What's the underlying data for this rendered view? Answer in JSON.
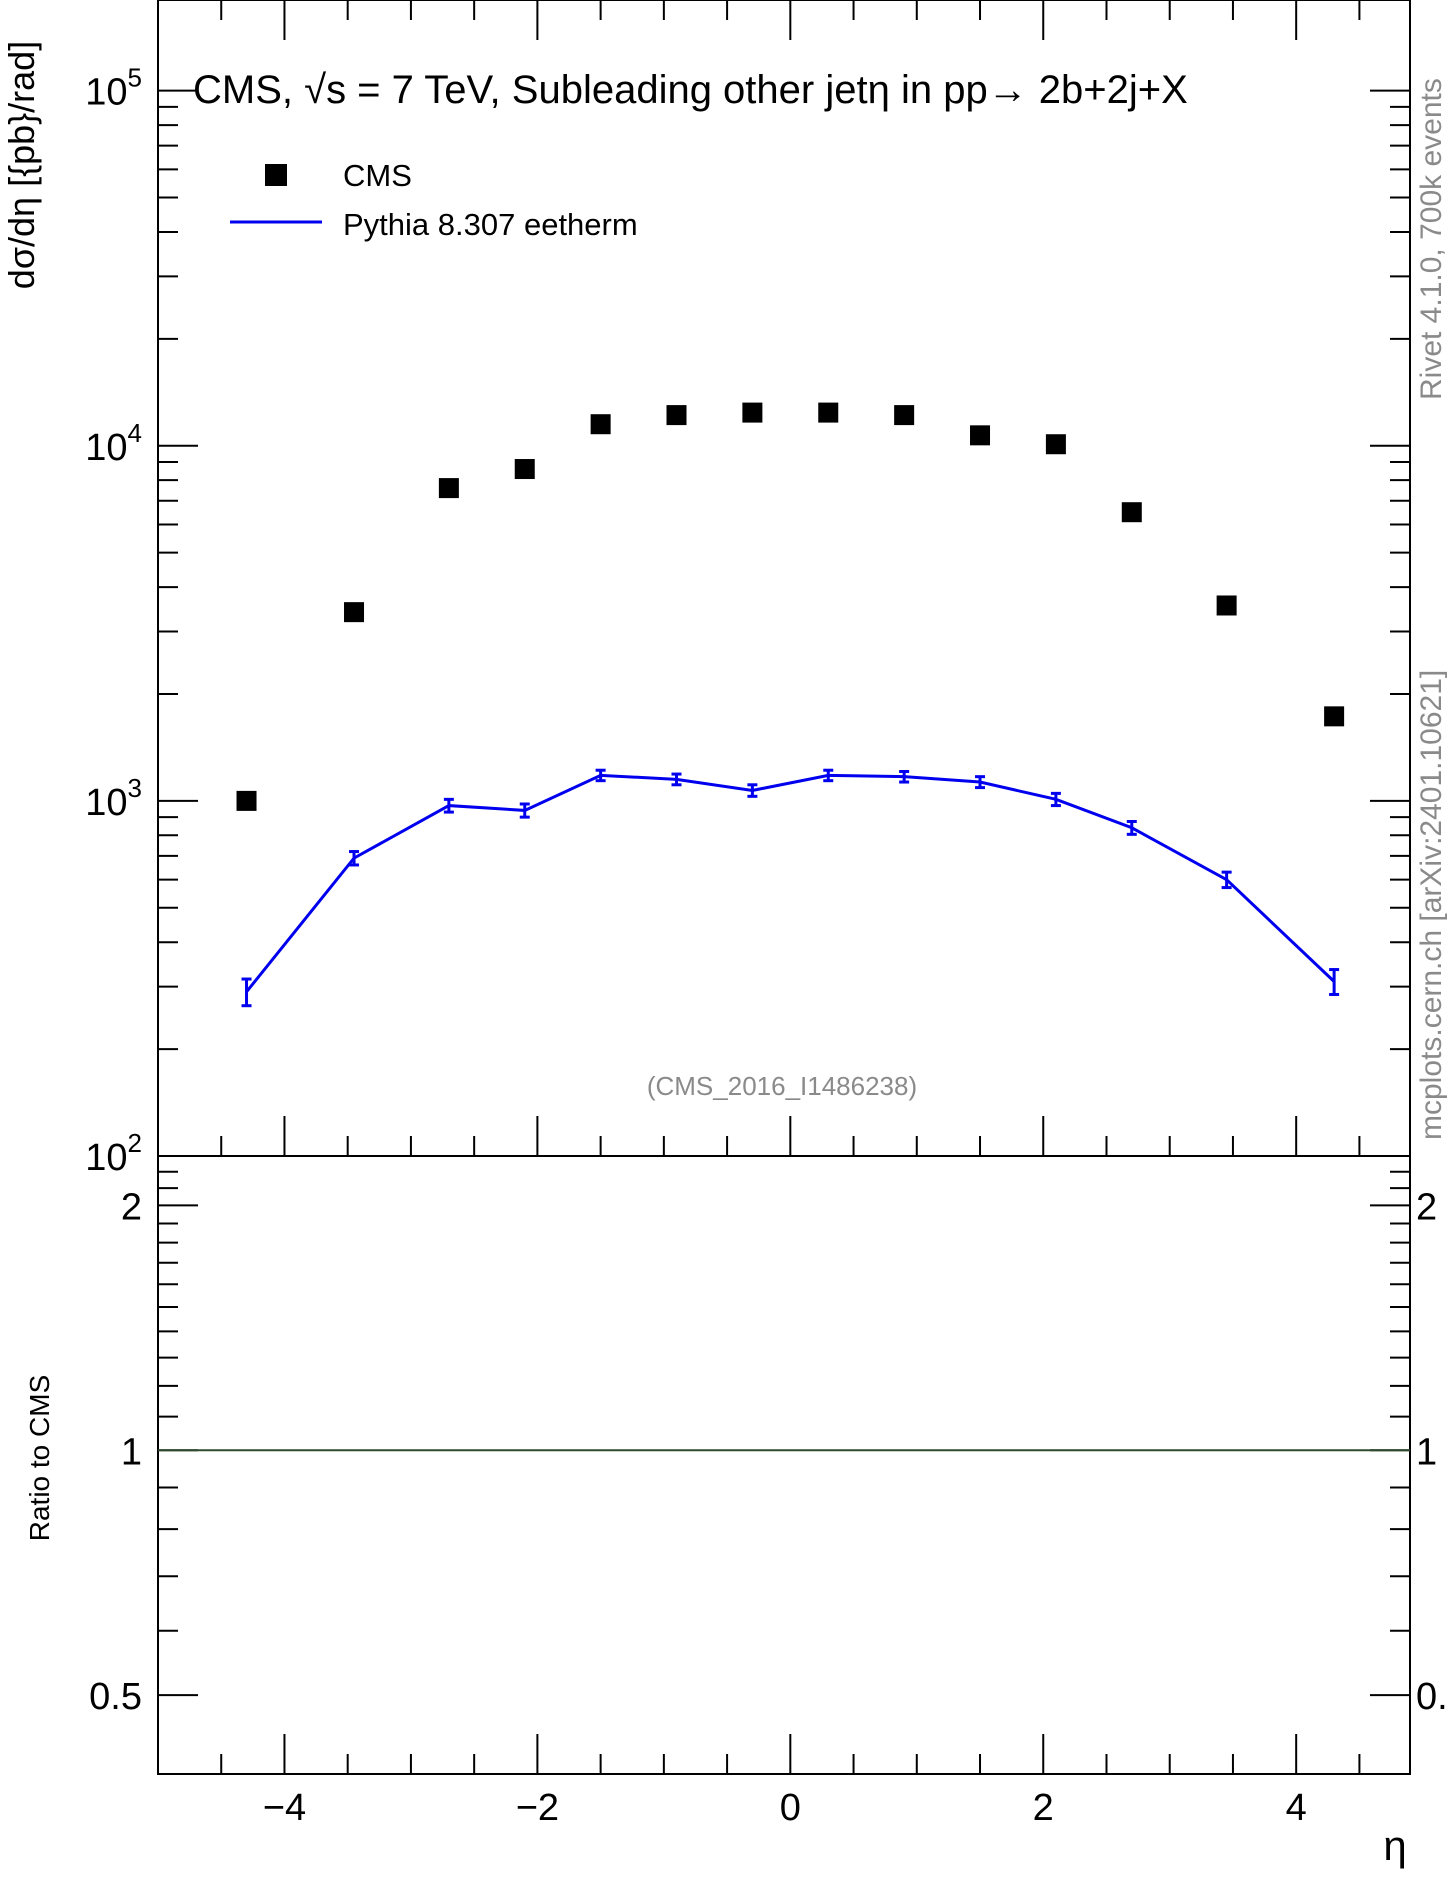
{
  "chart_data": {
    "type": "scatter",
    "title": "CMS, √s = 7 TeV, Subleading other jetη in pp→  2b+2j+X",
    "xlabel": "η",
    "ylabel": "dσ/dη [{pb}/rad]",
    "ratio_ylabel": "Ratio to CMS",
    "xlim": [
      -5,
      4.9
    ],
    "ylim": [
      100,
      180000
    ],
    "yscale": "log",
    "ratio_ylim": [
      0.4,
      2.3
    ],
    "ratio_yscale": "log",
    "x_ticks": [
      -4,
      -2,
      0,
      2,
      4
    ],
    "x_tick_labels": [
      "−4",
      "−2",
      "0",
      "2",
      "4"
    ],
    "y_tick_labels": [
      {
        "base": "10",
        "exp": "5",
        "value": 100000
      },
      {
        "base": "10",
        "exp": "4",
        "value": 10000
      },
      {
        "base": "10",
        "exp": "3",
        "value": 1000
      },
      {
        "base": "10",
        "exp": "2",
        "value": 100
      }
    ],
    "ratio_tick_labels": [
      {
        "label": "2",
        "value": 2
      },
      {
        "label": "1",
        "value": 1
      },
      {
        "label": "0.5",
        "value": 0.5
      }
    ],
    "ratio_right_tick_labels": [
      {
        "label": "2",
        "value": 2
      },
      {
        "label": "1",
        "value": 1
      },
      {
        "label": "0.",
        "value": 0.5
      }
    ],
    "x": [
      -4.3,
      -3.45,
      -2.7,
      -2.1,
      -1.5,
      -0.9,
      -0.3,
      0.3,
      0.9,
      1.5,
      2.1,
      2.7,
      3.45,
      4.3
    ],
    "series": [
      {
        "name": "CMS",
        "style": "markers",
        "color": "#000000",
        "values": [
          1000,
          3400,
          7600,
          8600,
          11500,
          12200,
          12400,
          12400,
          12200,
          10700,
          10100,
          6500,
          3550,
          1730
        ]
      },
      {
        "name": "Pythia 8.307 eetherm",
        "style": "line",
        "color": "#0000ee",
        "values": [
          290,
          690,
          970,
          940,
          1180,
          1150,
          1070,
          1180,
          1170,
          1130,
          1010,
          840,
          600,
          310
        ],
        "errors": [
          25,
          30,
          40,
          40,
          40,
          40,
          40,
          40,
          40,
          40,
          40,
          35,
          30,
          25
        ]
      }
    ],
    "ratio_reference": 1,
    "legend": "top-left",
    "annotation": "(CMS_2016_I1486238)",
    "side_text": [
      "Rivet 4.1.0,  700k events",
      "mcplots.cern.ch [arXiv:2401.10621]"
    ]
  }
}
